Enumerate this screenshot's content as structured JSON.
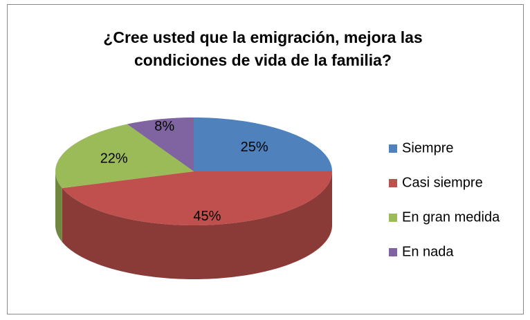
{
  "chart_data": {
    "type": "pie",
    "title": "¿Cree usted que la emigración, mejora las condiciones de vida de la familia?",
    "categories": [
      "Siempre",
      "Casi siempre",
      "En gran medida",
      "En nada"
    ],
    "values": [
      25,
      45,
      22,
      8
    ],
    "value_labels": [
      "25%",
      "45%",
      "22%",
      "8%"
    ],
    "colors": [
      "#4f81bd",
      "#c0504d",
      "#9bbb59",
      "#8064a2"
    ],
    "legend": "right"
  }
}
